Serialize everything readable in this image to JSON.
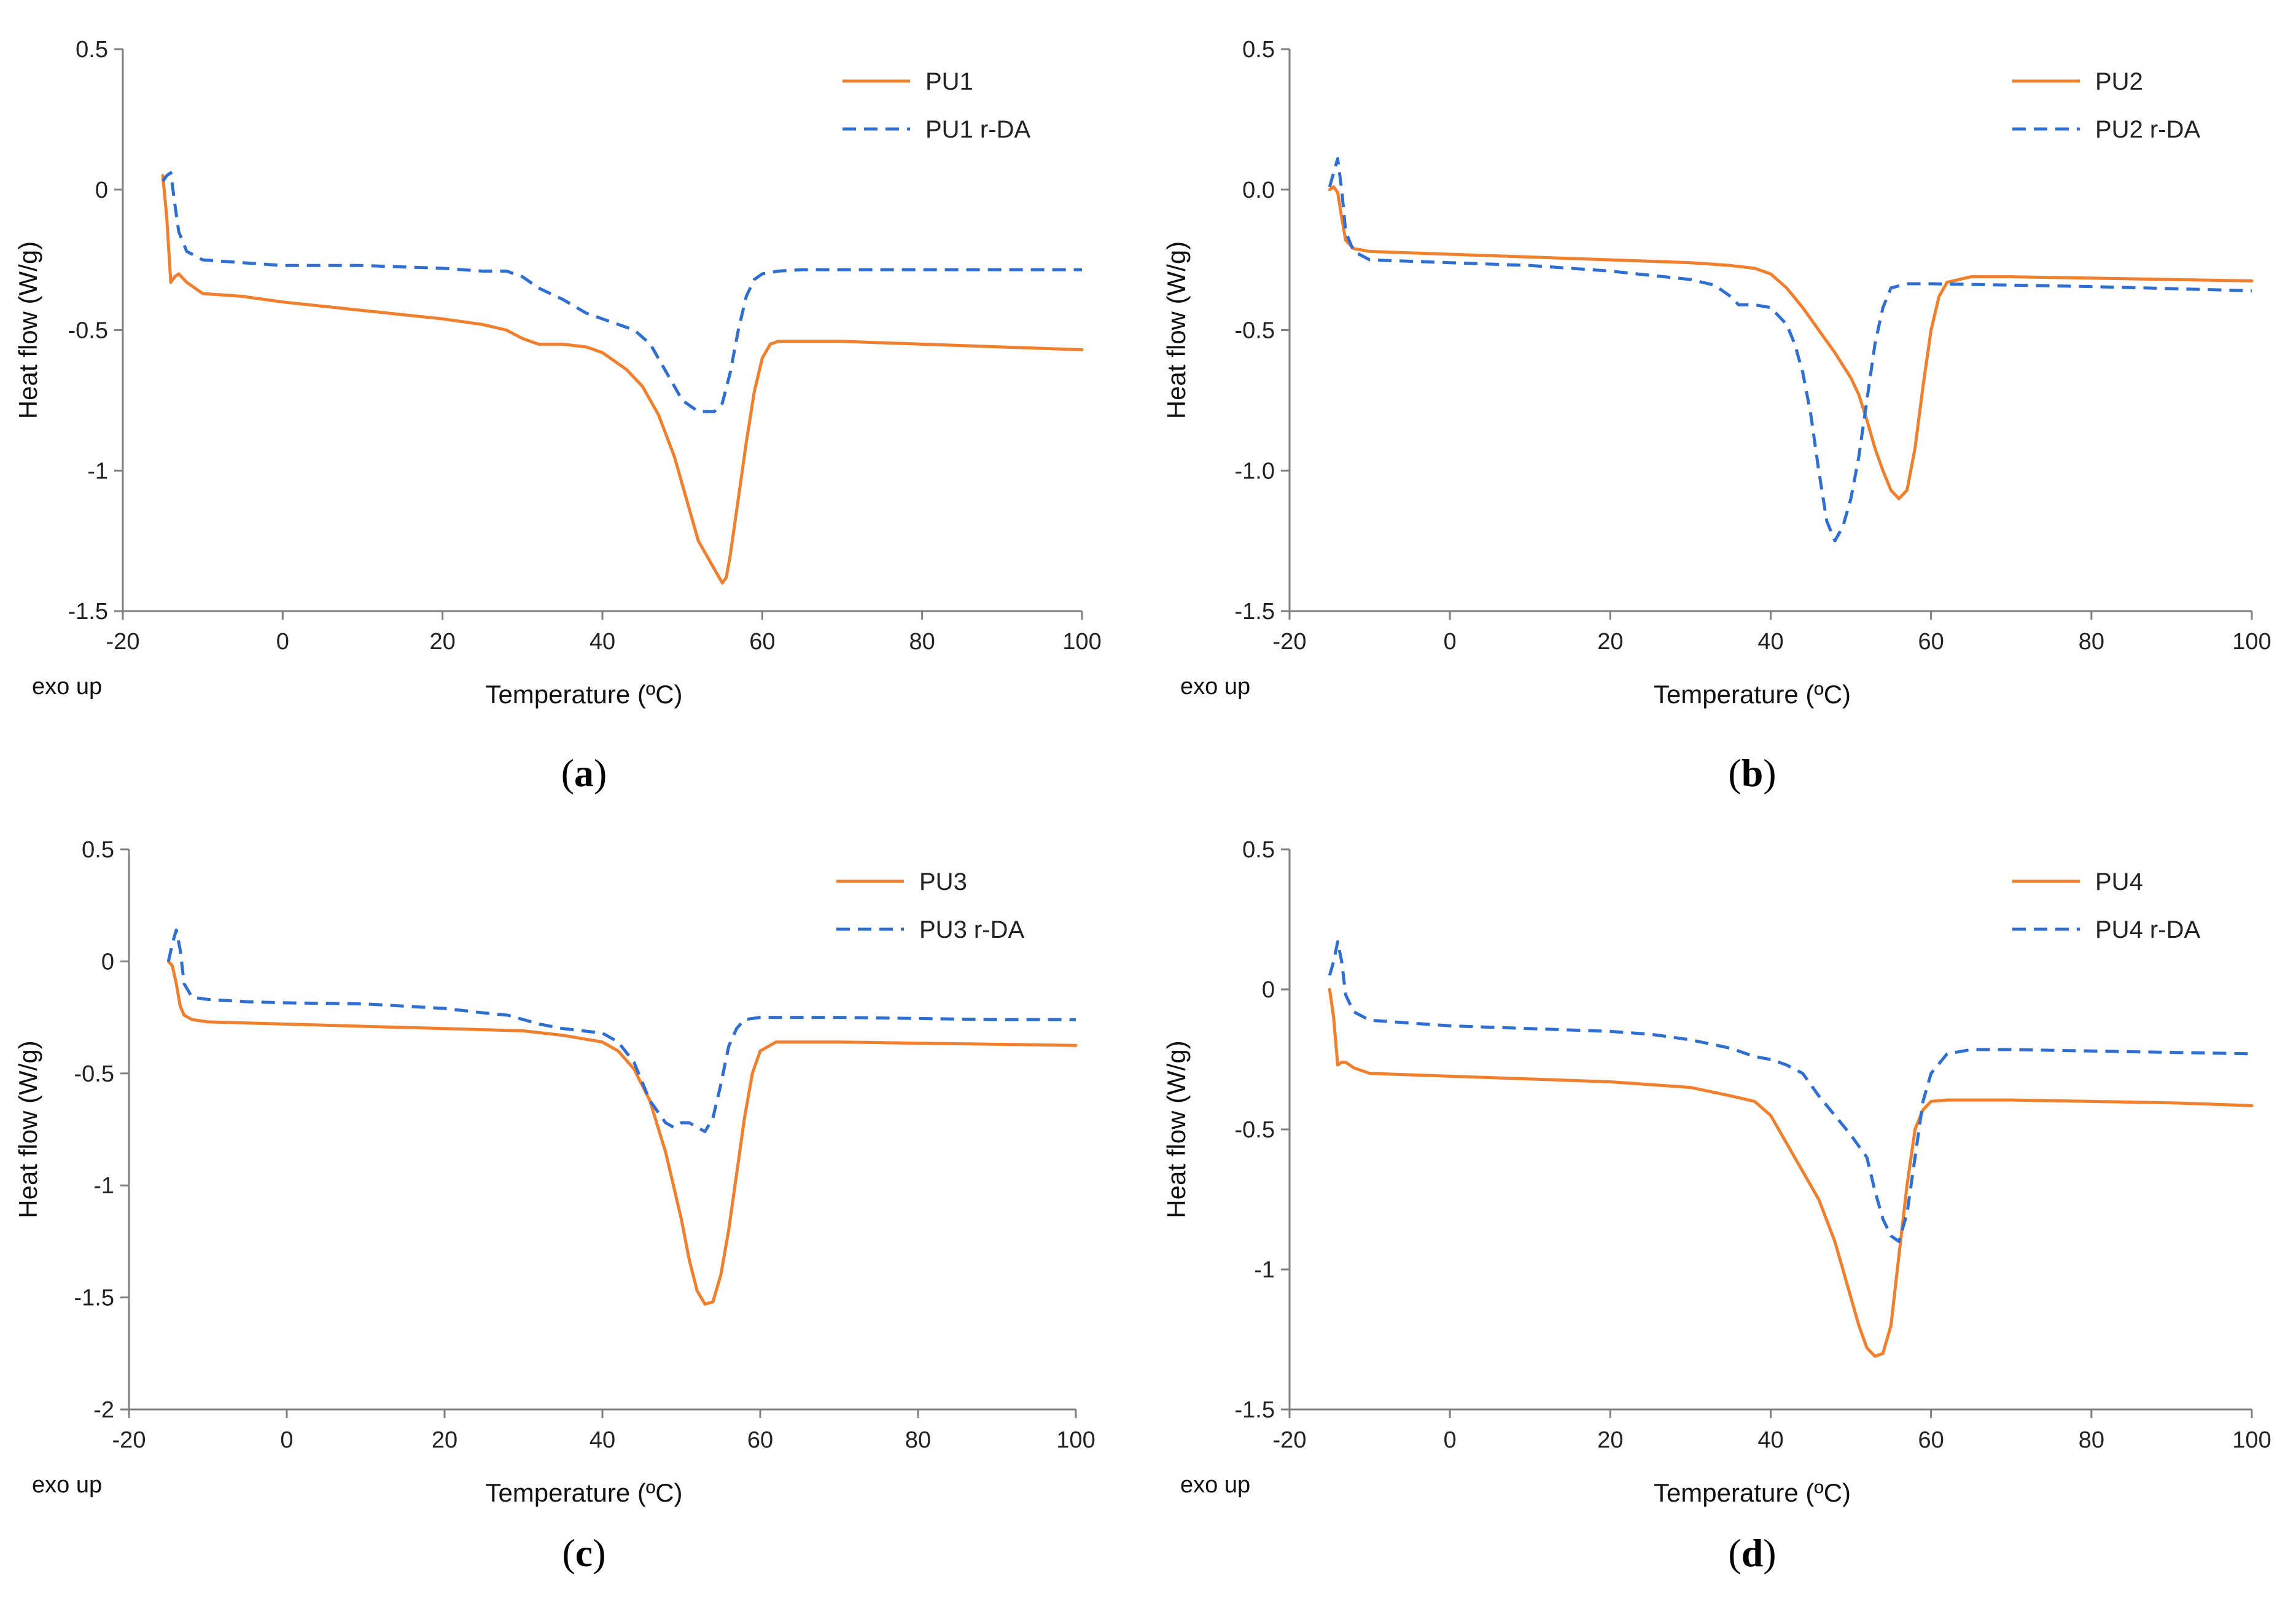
{
  "figure": {
    "xlabel": "Temperature (ºC)",
    "ylabel": "Heat flow (W/g)",
    "exo_label": "exo up",
    "colors": {
      "primary": "#F07F2E",
      "rda": "#2E6FD1",
      "axis": "#808080"
    }
  },
  "chart_data": [
    {
      "type": "line",
      "caption": {
        "open": "(",
        "letter": "a",
        "close": ")"
      },
      "title": "",
      "xlabel": "Temperature (ºC)",
      "ylabel": "Heat flow (W/g)",
      "xlim": [
        -20,
        100
      ],
      "ylim": [
        -1.5,
        0.5
      ],
      "xticks": [
        -20,
        0,
        20,
        40,
        60,
        80,
        100
      ],
      "xtick_labels": [
        "-20",
        "0",
        "20",
        "40",
        "60",
        "80",
        "100"
      ],
      "yticks": [
        0.5,
        0,
        -0.5,
        -1,
        -1.5
      ],
      "ytick_labels": [
        "0.5",
        "0",
        "-0.5",
        "-1",
        "-1.5"
      ],
      "legend": "top-right",
      "series": [
        {
          "name": "PU1",
          "style": "solid",
          "x": [
            -15,
            -14.5,
            -14,
            -13.5,
            -13,
            -12,
            -10,
            -5,
            0,
            10,
            20,
            25,
            28,
            30,
            32,
            35,
            38,
            40,
            43,
            45,
            47,
            49,
            50,
            51,
            52,
            53,
            54,
            55,
            55.5,
            56,
            57,
            58,
            59,
            60,
            61,
            62,
            65,
            70,
            80,
            90,
            100
          ],
          "y": [
            0.05,
            -0.1,
            -0.33,
            -0.31,
            -0.3,
            -0.33,
            -0.37,
            -0.38,
            -0.4,
            -0.43,
            -0.46,
            -0.48,
            -0.5,
            -0.53,
            -0.55,
            -0.55,
            -0.56,
            -0.58,
            -0.64,
            -0.7,
            -0.8,
            -0.95,
            -1.05,
            -1.15,
            -1.25,
            -1.3,
            -1.35,
            -1.4,
            -1.38,
            -1.3,
            -1.1,
            -0.9,
            -0.72,
            -0.6,
            -0.55,
            -0.54,
            -0.54,
            -0.54,
            -0.55,
            -0.56,
            -0.57
          ]
        },
        {
          "name": "PU1 r-DA",
          "style": "dashed",
          "x": [
            -15,
            -14.5,
            -14,
            -13.5,
            -13,
            -12,
            -10,
            -5,
            0,
            10,
            20,
            25,
            28,
            30,
            32,
            35,
            38,
            40,
            42,
            44,
            46,
            48,
            50,
            52,
            54,
            55,
            56,
            57,
            58,
            59,
            60,
            62,
            65,
            70,
            80,
            100
          ],
          "y": [
            0.03,
            0.05,
            0.06,
            -0.05,
            -0.15,
            -0.22,
            -0.25,
            -0.26,
            -0.27,
            -0.27,
            -0.28,
            -0.29,
            -0.29,
            -0.31,
            -0.35,
            -0.39,
            -0.44,
            -0.46,
            -0.48,
            -0.5,
            -0.55,
            -0.65,
            -0.75,
            -0.79,
            -0.79,
            -0.76,
            -0.65,
            -0.5,
            -0.38,
            -0.32,
            -0.3,
            -0.29,
            -0.285,
            -0.285,
            -0.285,
            -0.285
          ]
        }
      ]
    },
    {
      "type": "line",
      "caption": {
        "open": "(",
        "letter": "b",
        "close": ")"
      },
      "title": "",
      "xlabel": "Temperature (ºC)",
      "ylabel": "Heat flow (W/g)",
      "xlim": [
        -20,
        100
      ],
      "ylim": [
        -1.5,
        0.5
      ],
      "xticks": [
        -20,
        0,
        20,
        40,
        60,
        80,
        100
      ],
      "xtick_labels": [
        "-20",
        "0",
        "20",
        "40",
        "60",
        "80",
        "100"
      ],
      "yticks": [
        0.5,
        0,
        -0.5,
        -1,
        -1.5
      ],
      "ytick_labels": [
        "0.5",
        "0.0",
        "-0.5",
        "-1.0",
        "-1.5"
      ],
      "legend": "top-right",
      "series": [
        {
          "name": "PU2",
          "style": "solid",
          "x": [
            -15,
            -14.5,
            -14,
            -13.5,
            -13,
            -12,
            -10,
            0,
            10,
            20,
            30,
            35,
            38,
            40,
            42,
            44,
            46,
            48,
            50,
            51,
            52,
            53,
            54,
            55,
            56,
            57,
            58,
            59,
            60,
            61,
            62,
            65,
            70,
            80,
            90,
            100
          ],
          "y": [
            0.0,
            0.01,
            -0.01,
            -0.1,
            -0.18,
            -0.21,
            -0.22,
            -0.23,
            -0.24,
            -0.25,
            -0.26,
            -0.27,
            -0.28,
            -0.3,
            -0.35,
            -0.42,
            -0.5,
            -0.58,
            -0.67,
            -0.73,
            -0.82,
            -0.92,
            -1.0,
            -1.07,
            -1.1,
            -1.07,
            -0.92,
            -0.7,
            -0.5,
            -0.38,
            -0.33,
            -0.31,
            -0.31,
            -0.315,
            -0.32,
            -0.325
          ]
        },
        {
          "name": "PU2 r-DA",
          "style": "dashed",
          "x": [
            -15,
            -14.5,
            -14,
            -13.5,
            -13,
            -12,
            -10,
            0,
            10,
            20,
            30,
            33,
            35,
            36,
            38,
            40,
            42,
            43,
            44,
            45,
            46,
            47,
            48,
            49,
            50,
            51,
            52,
            53,
            54,
            55,
            57,
            60,
            70,
            80,
            100
          ],
          "y": [
            0.01,
            0.06,
            0.11,
            0.0,
            -0.15,
            -0.22,
            -0.25,
            -0.26,
            -0.27,
            -0.29,
            -0.32,
            -0.34,
            -0.38,
            -0.41,
            -0.41,
            -0.42,
            -0.48,
            -0.55,
            -0.65,
            -0.8,
            -1.0,
            -1.18,
            -1.25,
            -1.2,
            -1.1,
            -0.95,
            -0.75,
            -0.55,
            -0.42,
            -0.35,
            -0.335,
            -0.335,
            -0.34,
            -0.345,
            -0.36
          ]
        }
      ]
    },
    {
      "type": "line",
      "caption": {
        "open": "(",
        "letter": "c",
        "close": ")"
      },
      "title": "",
      "xlabel": "Temperature (ºC)",
      "ylabel": "Heat flow (W/g)",
      "xlim": [
        -20,
        100
      ],
      "ylim": [
        -2,
        0.5
      ],
      "xticks": [
        -20,
        0,
        20,
        40,
        60,
        80,
        100
      ],
      "xtick_labels": [
        "-20",
        "0",
        "20",
        "40",
        "60",
        "80",
        "100"
      ],
      "yticks": [
        0.5,
        0,
        -0.5,
        -1,
        -1.5,
        -2
      ],
      "ytick_labels": [
        "0.5",
        "0",
        "-0.5",
        "-1",
        "-1.5",
        "-2"
      ],
      "legend": "top-right",
      "series": [
        {
          "name": "PU3",
          "style": "solid",
          "x": [
            -15,
            -14.5,
            -14,
            -13.5,
            -13,
            -12,
            -10,
            0,
            10,
            20,
            30,
            35,
            40,
            42,
            44,
            46,
            48,
            50,
            51,
            52,
            53,
            54,
            55,
            56,
            57,
            58,
            59,
            60,
            62,
            65,
            70,
            80,
            90,
            100
          ],
          "y": [
            0.0,
            -0.02,
            -0.1,
            -0.2,
            -0.24,
            -0.26,
            -0.27,
            -0.28,
            -0.29,
            -0.3,
            -0.31,
            -0.33,
            -0.36,
            -0.4,
            -0.48,
            -0.62,
            -0.85,
            -1.15,
            -1.33,
            -1.47,
            -1.53,
            -1.52,
            -1.4,
            -1.2,
            -0.95,
            -0.7,
            -0.5,
            -0.4,
            -0.36,
            -0.36,
            -0.36,
            -0.365,
            -0.37,
            -0.375
          ]
        },
        {
          "name": "PU3 r-DA",
          "style": "dashed",
          "x": [
            -15,
            -14.5,
            -14,
            -13.5,
            -13,
            -12,
            -10,
            -5,
            0,
            10,
            20,
            25,
            28,
            30,
            32,
            35,
            40,
            42,
            44,
            46,
            48,
            49,
            50,
            51,
            52,
            53,
            54,
            55,
            56,
            57,
            58,
            60,
            65,
            70,
            80,
            90,
            100
          ],
          "y": [
            0.0,
            0.08,
            0.14,
            0.05,
            -0.1,
            -0.16,
            -0.17,
            -0.18,
            -0.185,
            -0.19,
            -0.21,
            -0.23,
            -0.24,
            -0.26,
            -0.28,
            -0.3,
            -0.32,
            -0.36,
            -0.45,
            -0.62,
            -0.72,
            -0.74,
            -0.72,
            -0.72,
            -0.74,
            -0.76,
            -0.7,
            -0.55,
            -0.38,
            -0.3,
            -0.26,
            -0.25,
            -0.25,
            -0.25,
            -0.255,
            -0.26,
            -0.26
          ]
        }
      ]
    },
    {
      "type": "line",
      "caption": {
        "open": "(",
        "letter": "d",
        "close": ")"
      },
      "title": "",
      "xlabel": "Temperature (ºC)",
      "ylabel": "Heat flow (W/g)",
      "xlim": [
        -20,
        100
      ],
      "ylim": [
        -1.5,
        0.5
      ],
      "xticks": [
        -20,
        0,
        20,
        40,
        60,
        80,
        100
      ],
      "xtick_labels": [
        "-20",
        "0",
        "20",
        "40",
        "60",
        "80",
        "100"
      ],
      "yticks": [
        0.5,
        0,
        -0.5,
        -1,
        -1.5
      ],
      "ytick_labels": [
        "0.5",
        "0",
        "-0.5",
        "-1",
        "-1.5"
      ],
      "legend": "top-right",
      "series": [
        {
          "name": "PU4",
          "style": "solid",
          "x": [
            -15,
            -14.5,
            -14,
            -13.5,
            -13,
            -12,
            -10,
            0,
            10,
            20,
            30,
            35,
            38,
            40,
            42,
            44,
            46,
            48,
            50,
            51,
            52,
            53,
            54,
            55,
            56,
            57,
            58,
            59,
            60,
            62,
            65,
            70,
            80,
            90,
            100
          ],
          "y": [
            0.0,
            -0.1,
            -0.27,
            -0.26,
            -0.26,
            -0.28,
            -0.3,
            -0.31,
            -0.32,
            -0.33,
            -0.35,
            -0.38,
            -0.4,
            -0.45,
            -0.55,
            -0.65,
            -0.75,
            -0.9,
            -1.1,
            -1.2,
            -1.28,
            -1.31,
            -1.3,
            -1.2,
            -0.95,
            -0.7,
            -0.5,
            -0.43,
            -0.4,
            -0.395,
            -0.395,
            -0.395,
            -0.4,
            -0.405,
            -0.415
          ]
        },
        {
          "name": "PU4 r-DA",
          "style": "dashed",
          "x": [
            -15,
            -14.5,
            -14,
            -13.5,
            -13,
            -12,
            -10,
            0,
            10,
            20,
            25,
            30,
            35,
            38,
            40,
            42,
            44,
            46,
            48,
            50,
            52,
            53,
            54,
            55,
            56,
            57,
            58,
            59,
            60,
            62,
            65,
            70,
            80,
            90,
            100
          ],
          "y": [
            0.05,
            0.1,
            0.17,
            0.1,
            -0.02,
            -0.08,
            -0.11,
            -0.13,
            -0.14,
            -0.15,
            -0.16,
            -0.18,
            -0.21,
            -0.24,
            -0.25,
            -0.27,
            -0.3,
            -0.38,
            -0.45,
            -0.52,
            -0.6,
            -0.72,
            -0.82,
            -0.88,
            -0.9,
            -0.8,
            -0.6,
            -0.4,
            -0.3,
            -0.23,
            -0.215,
            -0.215,
            -0.22,
            -0.225,
            -0.23
          ]
        }
      ]
    }
  ]
}
